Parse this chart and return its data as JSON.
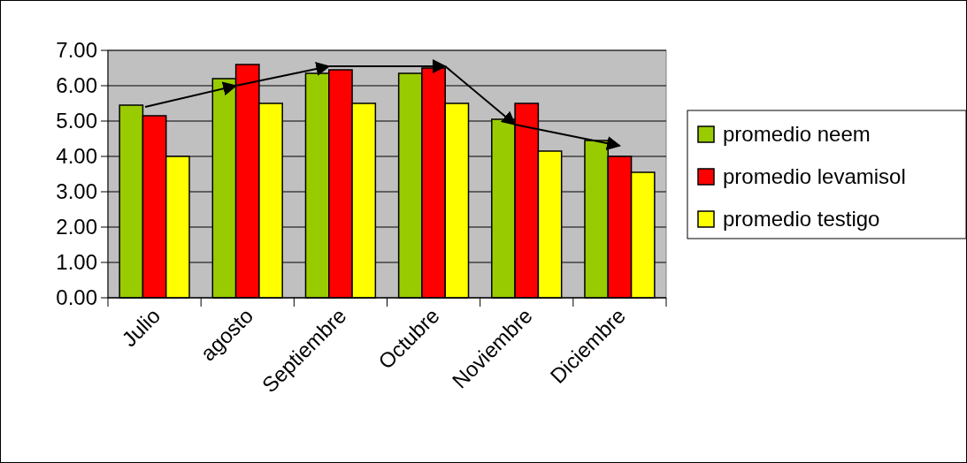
{
  "chart_data": {
    "type": "bar",
    "categories": [
      "Julio",
      "agosto",
      "Septiembre",
      "Octubre",
      "Noviembre",
      "Diciembre"
    ],
    "series": [
      {
        "name": "promedio neem",
        "color": "#99cc00",
        "values": [
          5.45,
          6.2,
          6.35,
          6.35,
          5.05,
          4.45
        ]
      },
      {
        "name": "promedio levamisol",
        "color": "#ff0000",
        "values": [
          5.15,
          6.6,
          6.45,
          6.5,
          5.5,
          4.0
        ]
      },
      {
        "name": "promedio testigo",
        "color": "#ffff00",
        "values": [
          4.0,
          5.5,
          5.5,
          5.5,
          4.15,
          3.55
        ]
      }
    ],
    "ylim": [
      0,
      7
    ],
    "yticks": [
      {
        "value": 0,
        "label": "0.00"
      },
      {
        "value": 1,
        "label": "1.00"
      },
      {
        "value": 2,
        "label": "2.00"
      },
      {
        "value": 3,
        "label": "3.00"
      },
      {
        "value": 4,
        "label": "4.00"
      },
      {
        "value": 5,
        "label": "5.00"
      },
      {
        "value": 6,
        "label": "6.00"
      },
      {
        "value": 7,
        "label": "7.00"
      }
    ],
    "grid": "y",
    "legend": "right"
  }
}
